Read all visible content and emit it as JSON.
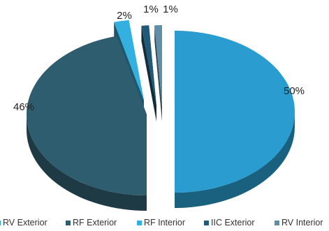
{
  "chart_data": {
    "type": "pie",
    "style": "3d-exploded",
    "slices": [
      {
        "label": "RV Exterior",
        "value": 50,
        "display": "50%",
        "color": "#2a9ccf"
      },
      {
        "label": "RF Exterior",
        "value": 46,
        "display": "46%",
        "color": "#2f5d70"
      },
      {
        "label": "RF Interior",
        "value": 2,
        "display": "2%",
        "color": "#33b0e0"
      },
      {
        "label": "IIC Exterior",
        "value": 1,
        "display": "1%",
        "color": "#215a78"
      },
      {
        "label": "RV Interior",
        "value": 1,
        "display": "1%",
        "color": "#5f8fa8"
      }
    ],
    "legend": {
      "position": "bottom",
      "items": [
        {
          "label": "RV Exterior",
          "color": "#2a9ccf"
        },
        {
          "label": "RF Exterior",
          "color": "#2f5d70"
        },
        {
          "label": "RF Interior",
          "color": "#33b0e0"
        },
        {
          "label": "IIC Exterior",
          "color": "#215a78"
        },
        {
          "label": "RV Interior",
          "color": "#5f8fa8"
        }
      ]
    }
  }
}
